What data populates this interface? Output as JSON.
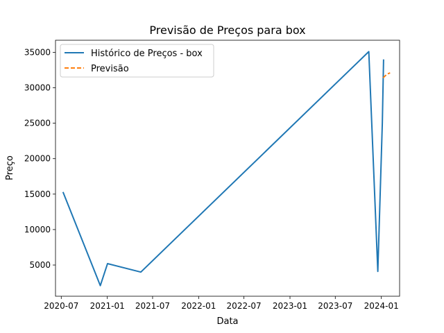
{
  "chart_data": {
    "type": "line",
    "title": "Previsão de Preços para box",
    "xlabel": "Data",
    "ylabel": "Preço",
    "x_ticks": [
      "2020-07",
      "2021-01",
      "2021-07",
      "2022-01",
      "2022-07",
      "2023-01",
      "2023-07",
      "2024-01"
    ],
    "y_ticks": [
      5000,
      10000,
      15000,
      20000,
      25000,
      30000,
      35000
    ],
    "xlim": [
      "2020-06-08",
      "2024-03-14"
    ],
    "ylim": [
      600,
      36700
    ],
    "legend_position": "top-left",
    "grid": false,
    "series": [
      {
        "name": "Histórico de Preços - box",
        "color": "#1f77b4",
        "dash": "solid",
        "points": [
          {
            "x": "2020-07-08",
            "y": 15300
          },
          {
            "x": "2020-12-04",
            "y": 2100
          },
          {
            "x": "2021-01-02",
            "y": 5200
          },
          {
            "x": "2021-05-15",
            "y": 4000
          },
          {
            "x": "2023-11-12",
            "y": 35100
          },
          {
            "x": "2023-12-18",
            "y": 4100
          },
          {
            "x": "2024-01-05",
            "y": 25000
          },
          {
            "x": "2024-01-10",
            "y": 34000
          }
        ]
      },
      {
        "name": "Previsão",
        "color": "#ff7f0e",
        "dash": "dashed",
        "points": [
          {
            "x": "2024-01-08",
            "y": 31400
          },
          {
            "x": "2024-01-23",
            "y": 31900
          },
          {
            "x": "2024-02-05",
            "y": 32100
          }
        ]
      }
    ]
  }
}
